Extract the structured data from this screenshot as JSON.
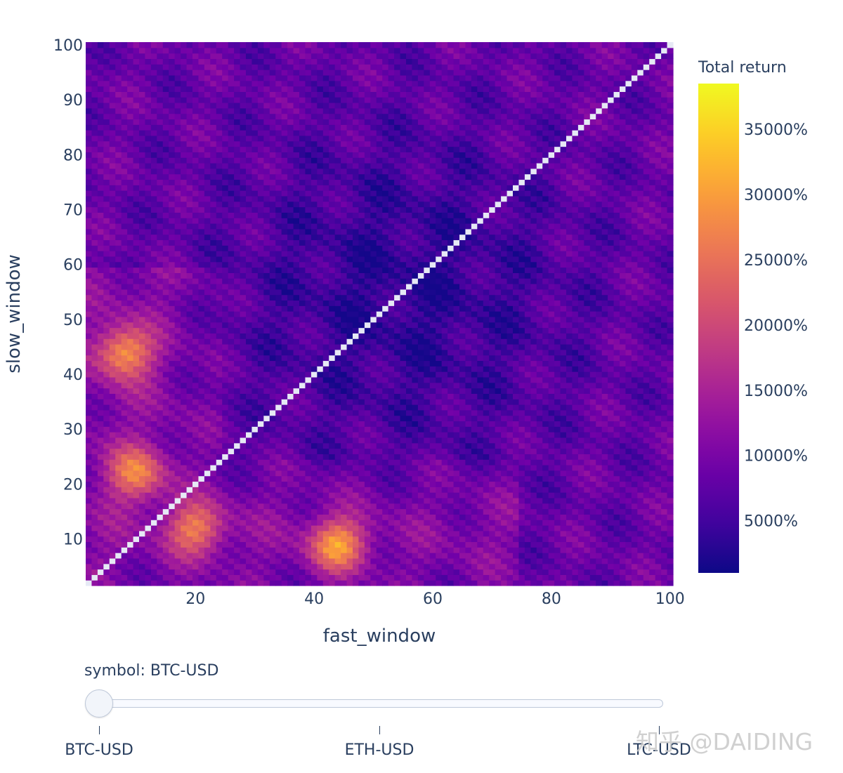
{
  "chart_data": {
    "type": "heatmap",
    "title": "",
    "xlabel": "fast_window",
    "ylabel": "slow_window",
    "x_range": [
      2,
      100
    ],
    "y_range": [
      2,
      100
    ],
    "x_ticks": [
      20,
      40,
      60,
      80,
      100
    ],
    "y_ticks": [
      10,
      20,
      30,
      40,
      50,
      60,
      70,
      80,
      90,
      100
    ],
    "colorscale": "Plasma",
    "colorbar": {
      "title": "Total return",
      "range": [
        1000,
        38500
      ],
      "ticks": [
        5000,
        10000,
        15000,
        20000,
        25000,
        30000,
        35000
      ],
      "tick_labels": [
        "5000%",
        "10000%",
        "15000%",
        "20000%",
        "25000%",
        "30000%",
        "35000%"
      ]
    },
    "diagonal": "no data where fast_window = slow_window",
    "hotspots": [
      {
        "x": 8,
        "y": 44,
        "value": 27000
      },
      {
        "x": 44,
        "y": 9,
        "value": 28000
      },
      {
        "x": 10,
        "y": 22,
        "value": 24000
      },
      {
        "x": 20,
        "y": 12,
        "value": 24000
      }
    ],
    "low_region": {
      "x": 55,
      "y": 55,
      "value": 3500
    }
  },
  "slider": {
    "label": "symbol: BTC-USD",
    "options": [
      "BTC-USD",
      "ETH-USD",
      "LTC-USD"
    ],
    "selected": "BTC-USD"
  },
  "watermark": "知乎 @DAIDING"
}
